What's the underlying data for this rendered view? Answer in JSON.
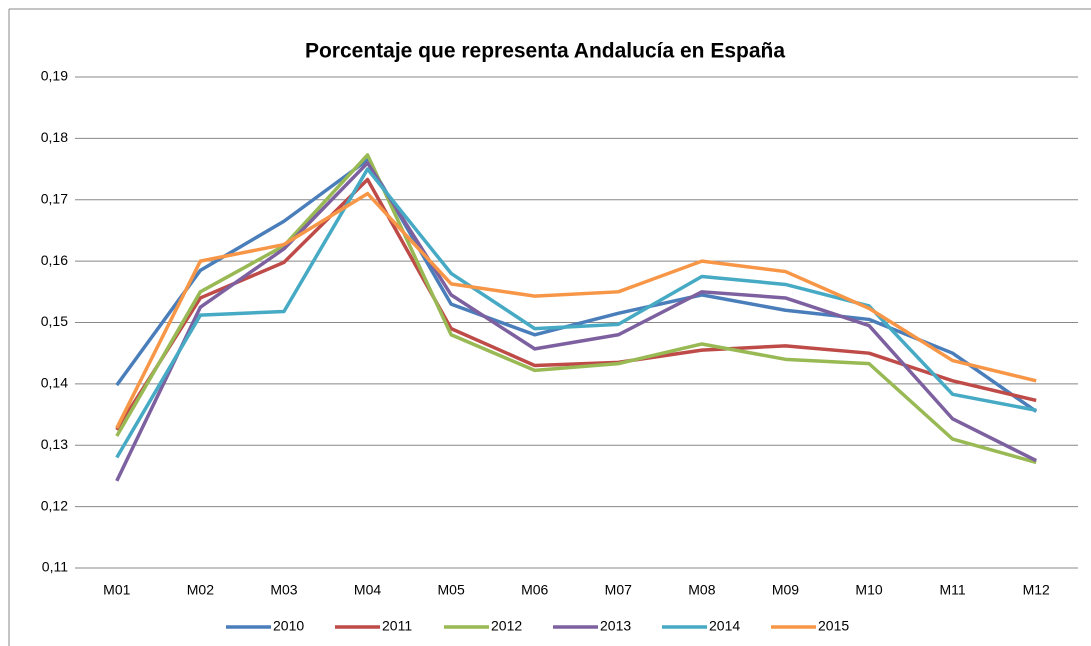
{
  "chart_data": {
    "type": "line",
    "title": "Porcentaje que representa Andalucía en España",
    "categories": [
      "M01",
      "M02",
      "M03",
      "M04",
      "M05",
      "M06",
      "M07",
      "M08",
      "M09",
      "M10",
      "M11",
      "M12"
    ],
    "series": [
      {
        "name": "2010",
        "color": "#4a7ebb",
        "values": [
          0.1398,
          0.1585,
          0.1665,
          0.1765,
          0.153,
          0.148,
          0.1515,
          0.1545,
          0.152,
          0.1505,
          0.145,
          0.1355
        ]
      },
      {
        "name": "2011",
        "color": "#be4b48",
        "values": [
          0.1325,
          0.154,
          0.1598,
          0.1733,
          0.149,
          0.143,
          0.1435,
          0.1455,
          0.1462,
          0.145,
          0.1405,
          0.1373
        ]
      },
      {
        "name": "2012",
        "color": "#98b954",
        "values": [
          0.1315,
          0.155,
          0.1625,
          0.1773,
          0.148,
          0.1422,
          0.1433,
          0.1465,
          0.144,
          0.1433,
          0.131,
          0.1272
        ]
      },
      {
        "name": "2013",
        "color": "#7d60a0",
        "values": [
          0.1242,
          0.1525,
          0.162,
          0.176,
          0.1545,
          0.1457,
          0.148,
          0.155,
          0.154,
          0.1495,
          0.1343,
          0.1275
        ]
      },
      {
        "name": "2014",
        "color": "#46aac5",
        "values": [
          0.128,
          0.1512,
          0.1518,
          0.175,
          0.158,
          0.149,
          0.1497,
          0.1575,
          0.1562,
          0.1527,
          0.1383,
          0.1357
        ]
      },
      {
        "name": "2015",
        "color": "#f79646",
        "values": [
          0.1328,
          0.16,
          0.1627,
          0.171,
          0.1563,
          0.1543,
          0.155,
          0.16,
          0.1583,
          0.1523,
          0.1438,
          0.1405
        ]
      }
    ],
    "ylim": [
      0.11,
      0.19
    ],
    "yticks": [
      {
        "value": 0.11,
        "label": "0,11"
      },
      {
        "value": 0.12,
        "label": "0,12"
      },
      {
        "value": 0.13,
        "label": "0,13"
      },
      {
        "value": 0.14,
        "label": "0,14"
      },
      {
        "value": 0.15,
        "label": "0,15"
      },
      {
        "value": 0.16,
        "label": "0,16"
      },
      {
        "value": 0.17,
        "label": "0,17"
      },
      {
        "value": 0.18,
        "label": "0,18"
      },
      {
        "value": 0.19,
        "label": "0,19"
      }
    ],
    "grid": true,
    "legend": "bottom"
  }
}
